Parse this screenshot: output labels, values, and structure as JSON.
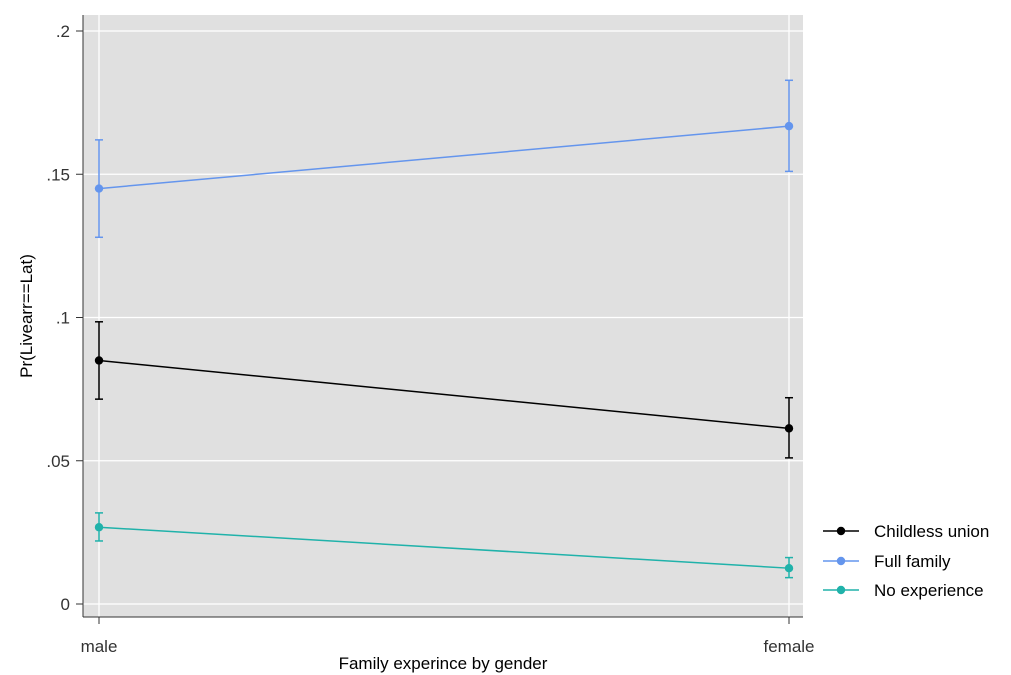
{
  "chart_data": {
    "type": "line",
    "categories": [
      "male",
      "female"
    ],
    "xlabel": "Family experince by gender",
    "ylabel": "Pr(Livearr==Lat)",
    "ylim": [
      0,
      0.2
    ],
    "yticks": [
      0,
      0.05,
      0.1,
      0.15,
      0.2
    ],
    "ytick_labels": [
      "0",
      ".05",
      ".1",
      ".15",
      ".2"
    ],
    "grid": true,
    "legend_position": "right-bottom",
    "series": [
      {
        "name": "Childless union",
        "color": "#000000",
        "values": [
          0.085,
          0.0613
        ],
        "ci_low": [
          0.0715,
          0.051
        ],
        "ci_high": [
          0.0985,
          0.072
        ]
      },
      {
        "name": "Full family",
        "color": "#6495ed",
        "values": [
          0.145,
          0.1668
        ],
        "ci_low": [
          0.128,
          0.151
        ],
        "ci_high": [
          0.162,
          0.1828
        ]
      },
      {
        "name": "No experience",
        "color": "#20b2aa",
        "values": [
          0.0268,
          0.0125
        ],
        "ci_low": [
          0.022,
          0.0092
        ],
        "ci_high": [
          0.0318,
          0.0162
        ]
      }
    ]
  }
}
